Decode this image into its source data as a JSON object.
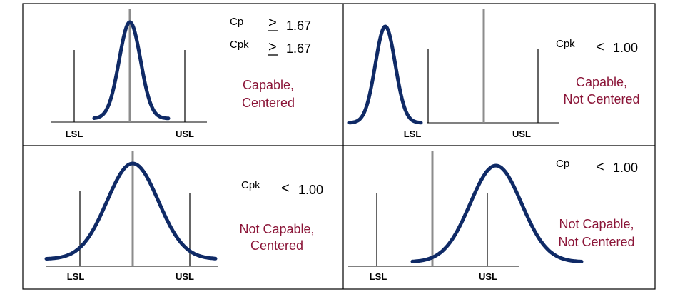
{
  "colors": {
    "curve": "#0f2a66",
    "center_line": "#8c8c8c",
    "spec_line": "#000000",
    "status_text": "#8b1538",
    "text": "#000000",
    "border": "#000000"
  },
  "panels": [
    {
      "id": "capable-centered",
      "lsl_label": "LSL",
      "usl_label": "USL",
      "metrics": [
        {
          "name": "Cp",
          "symbol": ">",
          "value": "1.67"
        },
        {
          "name": "Cpk",
          "symbol": ">",
          "value": "1.67"
        }
      ],
      "status_line1": "Capable,",
      "status_line2": "Centered"
    },
    {
      "id": "capable-not-centered",
      "lsl_label": "LSL",
      "usl_label": "USL",
      "metrics": [
        {
          "name": "Cpk",
          "symbol": "<",
          "value": "1.00"
        }
      ],
      "status_line1": "Capable,",
      "status_line2": "Not Centered"
    },
    {
      "id": "not-capable-centered",
      "lsl_label": "LSL",
      "usl_label": "USL",
      "metrics": [
        {
          "name": "Cpk",
          "symbol": "<",
          "value": "1.00"
        }
      ],
      "status_line1": "Not Capable,",
      "status_line2": "Centered"
    },
    {
      "id": "not-capable-not-centered",
      "lsl_label": "LSL",
      "usl_label": "USL",
      "metrics": [
        {
          "name": "Cp",
          "symbol": "<",
          "value": "1.00"
        }
      ],
      "status_line1": "Not Capable,",
      "status_line2": "Not Centered"
    }
  ]
}
